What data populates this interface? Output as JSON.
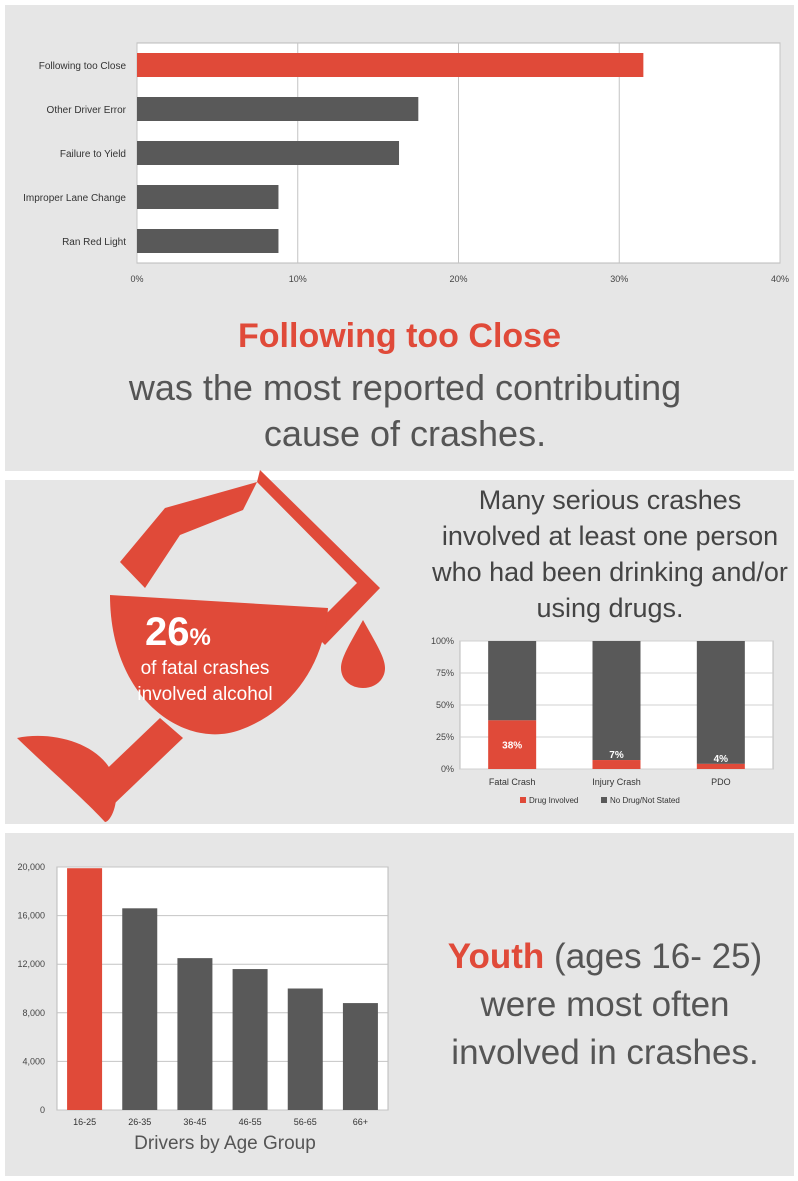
{
  "colors": {
    "accent": "#e04a39",
    "dark": "#595959",
    "panel": "#e6e6e6"
  },
  "causes": {
    "headline": "Following too Close",
    "description": "was the most reported contributing cause of crashes.",
    "chart_data": {
      "type": "bar",
      "orientation": "horizontal",
      "categories": [
        "Following too Close",
        "Other Driver Error",
        "Failure to Yield",
        "Improper Lane Change",
        "Ran Red Light"
      ],
      "values": [
        31.5,
        17.5,
        16.3,
        8.8,
        8.8
      ],
      "ticks": [
        "0%",
        "10%",
        "20%",
        "30%",
        "40%"
      ],
      "xlim": [
        0,
        40
      ],
      "grid": true,
      "highlight_index": 0
    }
  },
  "alcohol": {
    "icon": "wine-glass-icon",
    "percent": "26",
    "percent_sign": "%",
    "caption": "of fatal crashes involved alcohol",
    "drink_text": "Many serious crashes involved at least one person who had been drinking and/or using drugs.",
    "chart_data": {
      "type": "bar",
      "stacked": true,
      "categories": [
        "Fatal Crash",
        "Injury Crash",
        "PDO"
      ],
      "series": [
        {
          "name": "Drug  Involved",
          "values": [
            38,
            7,
            4
          ],
          "labels": [
            "38%",
            "7%",
            "4%"
          ]
        },
        {
          "name": "No Drug/Not Stated",
          "values": [
            62,
            93,
            96
          ]
        }
      ],
      "ticks": [
        "0%",
        "25%",
        "50%",
        "75%",
        "100%"
      ],
      "ylim": [
        0,
        100
      ],
      "legend": "bottom"
    }
  },
  "age": {
    "youth_word": "Youth",
    "youth_rest": " (ages 16- 25) were most often involved in crashes.",
    "chart_title": "Drivers by Age Group",
    "chart_data": {
      "type": "bar",
      "categories": [
        "16-25",
        "26-35",
        "36-45",
        "46-55",
        "56-65",
        "66+"
      ],
      "values": [
        19900,
        16600,
        12500,
        11600,
        10000,
        8800
      ],
      "ticks": [
        "0",
        "4,000",
        "8,000",
        "12,000",
        "16,000",
        "20,000"
      ],
      "ylim": [
        0,
        20000
      ],
      "grid": true,
      "highlight_index": 0
    }
  }
}
